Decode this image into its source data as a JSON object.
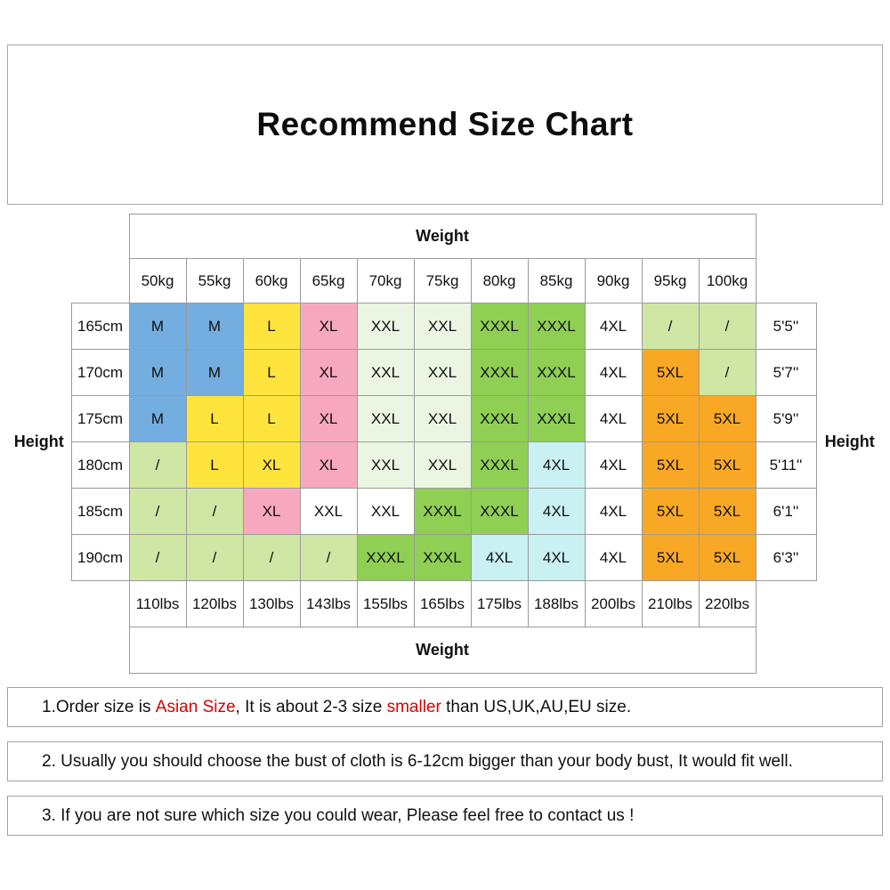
{
  "title": "Recommend Size Chart",
  "table": {
    "weight_label": "Weight",
    "height_label": "Height"
  },
  "notes": [
    {
      "segments": [
        {
          "text": "1.Order size is ",
          "red": false
        },
        {
          "text": "Asian Size",
          "red": true
        },
        {
          "text": ", It is about 2-3 size ",
          "red": false
        },
        {
          "text": "smaller",
          "red": true
        },
        {
          "text": " than US,UK,AU,EU size.",
          "red": false
        }
      ]
    },
    {
      "segments": [
        {
          "text": "2. Usually you should choose the bust of cloth is 6-12cm bigger than your body bust, It would fit well.",
          "red": false
        }
      ]
    },
    {
      "segments": [
        {
          "text": "3. If you are not sure which size you could wear, Please feel free to contact us !",
          "red": false
        }
      ]
    }
  ],
  "chart_data": {
    "type": "table",
    "title": "Recommend Size Chart",
    "top_axis_label": "Weight",
    "bottom_axis_label": "Weight",
    "left_axis_label": "Height",
    "right_axis_label": "Height",
    "columns_weight_kg": [
      "50kg",
      "55kg",
      "60kg",
      "65kg",
      "70kg",
      "75kg",
      "80kg",
      "85kg",
      "90kg",
      "95kg",
      "100kg"
    ],
    "columns_weight_lbs": [
      "110lbs",
      "120lbs",
      "130lbs",
      "143lbs",
      "155lbs",
      "165lbs",
      "175lbs",
      "188lbs",
      "200lbs",
      "210lbs",
      "220lbs"
    ],
    "rows_height_cm": [
      "165cm",
      "170cm",
      "175cm",
      "180cm",
      "185cm",
      "190cm"
    ],
    "rows_height_ft": [
      "5'5''",
      "5'7''",
      "5'9''",
      "5'11''",
      "6'1''",
      "6'3''"
    ],
    "palette": {
      "blue": "#74ADE0",
      "yellow": "#FFE43D",
      "pink": "#F7A8BF",
      "pale_green": "#EAF6E2",
      "green": "#8FD054",
      "cyan": "#C9F0F2",
      "orange": "#F9A825",
      "light_green": "#CFE6A5",
      "white": "#FFFFFF"
    },
    "cells": [
      [
        {
          "size": "M",
          "color": "blue"
        },
        {
          "size": "M",
          "color": "blue"
        },
        {
          "size": "L",
          "color": "yellow"
        },
        {
          "size": "XL",
          "color": "pink"
        },
        {
          "size": "XXL",
          "color": "pale_green"
        },
        {
          "size": "XXL",
          "color": "pale_green"
        },
        {
          "size": "XXXL",
          "color": "green"
        },
        {
          "size": "XXXL",
          "color": "green"
        },
        {
          "size": "4XL",
          "color": "white"
        },
        {
          "size": "/",
          "color": "light_green"
        },
        {
          "size": "/",
          "color": "light_green"
        }
      ],
      [
        {
          "size": "M",
          "color": "blue"
        },
        {
          "size": "M",
          "color": "blue"
        },
        {
          "size": "L",
          "color": "yellow"
        },
        {
          "size": "XL",
          "color": "pink"
        },
        {
          "size": "XXL",
          "color": "pale_green"
        },
        {
          "size": "XXL",
          "color": "pale_green"
        },
        {
          "size": "XXXL",
          "color": "green"
        },
        {
          "size": "XXXL",
          "color": "green"
        },
        {
          "size": "4XL",
          "color": "white"
        },
        {
          "size": "5XL",
          "color": "orange"
        },
        {
          "size": "/",
          "color": "light_green"
        }
      ],
      [
        {
          "size": "M",
          "color": "blue"
        },
        {
          "size": "L",
          "color": "yellow"
        },
        {
          "size": "L",
          "color": "yellow"
        },
        {
          "size": "XL",
          "color": "pink"
        },
        {
          "size": "XXL",
          "color": "pale_green"
        },
        {
          "size": "XXL",
          "color": "pale_green"
        },
        {
          "size": "XXXL",
          "color": "green"
        },
        {
          "size": "XXXL",
          "color": "green"
        },
        {
          "size": "4XL",
          "color": "white"
        },
        {
          "size": "5XL",
          "color": "orange"
        },
        {
          "size": "5XL",
          "color": "orange"
        }
      ],
      [
        {
          "size": "/",
          "color": "light_green"
        },
        {
          "size": "L",
          "color": "yellow"
        },
        {
          "size": "XL",
          "color": "yellow"
        },
        {
          "size": "XL",
          "color": "pink"
        },
        {
          "size": "XXL",
          "color": "pale_green"
        },
        {
          "size": "XXL",
          "color": "pale_green"
        },
        {
          "size": "XXXL",
          "color": "green"
        },
        {
          "size": "4XL",
          "color": "cyan"
        },
        {
          "size": "4XL",
          "color": "white"
        },
        {
          "size": "5XL",
          "color": "orange"
        },
        {
          "size": "5XL",
          "color": "orange"
        }
      ],
      [
        {
          "size": "/",
          "color": "light_green"
        },
        {
          "size": "/",
          "color": "light_green"
        },
        {
          "size": "XL",
          "color": "pink"
        },
        {
          "size": "XXL",
          "color": "white"
        },
        {
          "size": "XXL",
          "color": "white"
        },
        {
          "size": "XXXL",
          "color": "green"
        },
        {
          "size": "XXXL",
          "color": "green"
        },
        {
          "size": "4XL",
          "color": "cyan"
        },
        {
          "size": "4XL",
          "color": "white"
        },
        {
          "size": "5XL",
          "color": "orange"
        },
        {
          "size": "5XL",
          "color": "orange"
        }
      ],
      [
        {
          "size": "/",
          "color": "light_green"
        },
        {
          "size": "/",
          "color": "light_green"
        },
        {
          "size": "/",
          "color": "light_green"
        },
        {
          "size": "/",
          "color": "light_green"
        },
        {
          "size": "XXXL",
          "color": "green"
        },
        {
          "size": "XXXL",
          "color": "green"
        },
        {
          "size": "4XL",
          "color": "cyan"
        },
        {
          "size": "4XL",
          "color": "cyan"
        },
        {
          "size": "4XL",
          "color": "white"
        },
        {
          "size": "5XL",
          "color": "orange"
        },
        {
          "size": "5XL",
          "color": "orange"
        }
      ]
    ]
  }
}
